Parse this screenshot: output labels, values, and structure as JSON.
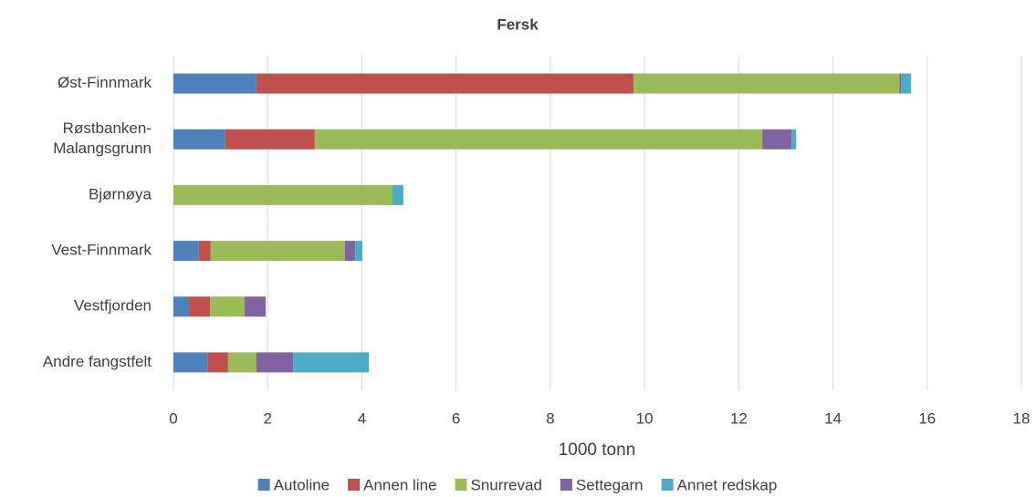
{
  "chart_data": {
    "type": "stacked-barh",
    "title": "Fersk",
    "x_label": "1000 tonn",
    "categories": [
      "Øst-Finnmark",
      "Røstbanken-Malangsgrunn",
      "Bjørnøya",
      "Vest-Finnmark",
      "Vestfjorden",
      "Andre fangstfelt"
    ],
    "series": [
      {
        "name": "Autoline",
        "color": "#4f81bd",
        "values": [
          1.76,
          1.1,
          0,
          0.54,
          0.33,
          0.72
        ]
      },
      {
        "name": "Annen line",
        "color": "#c0504d",
        "values": [
          8.01,
          1.9,
          0,
          0.25,
          0.45,
          0.44
        ]
      },
      {
        "name": "Snurrevad",
        "color": "#9bbb59",
        "values": [
          5.64,
          9.5,
          4.65,
          2.85,
          0.73,
          0.6
        ]
      },
      {
        "name": "Settegarn",
        "color": "#8064a2",
        "values": [
          0.04,
          0.62,
          0,
          0.22,
          0.45,
          0.78
        ]
      },
      {
        "name": "Annet redskap",
        "color": "#4bacc6",
        "values": [
          0.21,
          0.1,
          0.23,
          0.15,
          0,
          1.61
        ]
      }
    ],
    "xlim": [
      0,
      18
    ],
    "xticks": [
      0,
      2,
      4,
      6,
      8,
      10,
      12,
      14,
      16,
      18
    ],
    "grid": true,
    "legend": "bottom"
  }
}
